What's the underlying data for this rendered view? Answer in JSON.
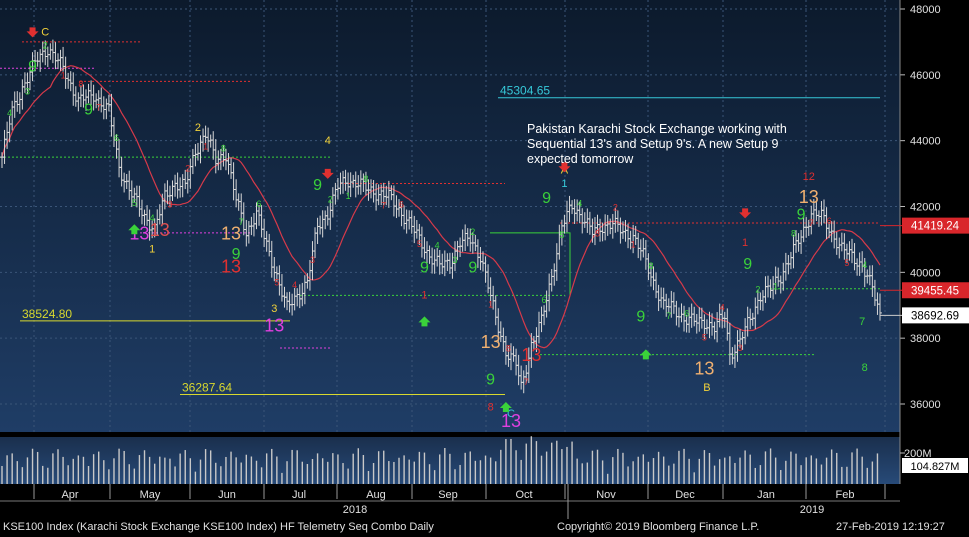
{
  "chart_data": {
    "type": "line",
    "subtype": "ohlc-bar-with-td-sequential-counts",
    "y_range": [
      35200,
      48300
    ],
    "y_ticks": [
      "48000",
      "46000",
      "44000",
      "42000",
      "40000",
      "38000",
      "36000"
    ],
    "volume_ticks": [
      "200M"
    ],
    "x_month_labels": [
      "Apr",
      "May",
      "Jun",
      "Jul",
      "Aug",
      "Sep",
      "Oct",
      "Nov",
      "Dec",
      "Jan",
      "Feb"
    ],
    "year_labels": [
      "2018",
      "2019"
    ],
    "price_anchors": [
      [
        0,
        43500
      ],
      [
        4,
        44900
      ],
      [
        8,
        45600
      ],
      [
        14,
        46500
      ],
      [
        18,
        46800
      ],
      [
        24,
        46200
      ],
      [
        30,
        45200
      ],
      [
        36,
        45400
      ],
      [
        42,
        44900
      ],
      [
        46,
        43200
      ],
      [
        50,
        42500
      ],
      [
        56,
        41700
      ],
      [
        60,
        41300
      ],
      [
        64,
        42300
      ],
      [
        68,
        42700
      ],
      [
        72,
        42600
      ],
      [
        76,
        43700
      ],
      [
        80,
        44200
      ],
      [
        84,
        43400
      ],
      [
        88,
        43600
      ],
      [
        92,
        42200
      ],
      [
        96,
        41200
      ],
      [
        100,
        41800
      ],
      [
        104,
        40800
      ],
      [
        108,
        39900
      ],
      [
        112,
        38900
      ],
      [
        116,
        39300
      ],
      [
        120,
        39700
      ],
      [
        124,
        41400
      ],
      [
        128,
        41800
      ],
      [
        132,
        42600
      ],
      [
        136,
        42800
      ],
      [
        140,
        42700
      ],
      [
        144,
        42500
      ],
      [
        148,
        42400
      ],
      [
        152,
        42300
      ],
      [
        156,
        41900
      ],
      [
        160,
        41500
      ],
      [
        164,
        41000
      ],
      [
        168,
        40500
      ],
      [
        172,
        40200
      ],
      [
        176,
        40300
      ],
      [
        180,
        40900
      ],
      [
        184,
        41000
      ],
      [
        188,
        40500
      ],
      [
        190,
        39900
      ],
      [
        194,
        38600
      ],
      [
        198,
        37600
      ],
      [
        202,
        37200
      ],
      [
        204,
        36500
      ],
      [
        208,
        37800
      ],
      [
        212,
        38500
      ],
      [
        216,
        39900
      ],
      [
        220,
        41400
      ],
      [
        224,
        42000
      ],
      [
        228,
        41700
      ],
      [
        232,
        41200
      ],
      [
        236,
        41400
      ],
      [
        240,
        41500
      ],
      [
        244,
        41200
      ],
      [
        248,
        41100
      ],
      [
        252,
        40500
      ],
      [
        256,
        39700
      ],
      [
        260,
        39000
      ],
      [
        264,
        38900
      ],
      [
        268,
        38600
      ],
      [
        272,
        38500
      ],
      [
        276,
        38500
      ],
      [
        280,
        38300
      ],
      [
        284,
        38700
      ],
      [
        286,
        37500
      ],
      [
        290,
        37900
      ],
      [
        294,
        38600
      ],
      [
        298,
        39300
      ],
      [
        302,
        39500
      ],
      [
        306,
        39900
      ],
      [
        310,
        40500
      ],
      [
        314,
        41100
      ],
      [
        318,
        41800
      ],
      [
        322,
        41700
      ],
      [
        326,
        41200
      ],
      [
        330,
        40700
      ],
      [
        334,
        40500
      ],
      [
        338,
        40200
      ],
      [
        342,
        39500
      ],
      [
        345,
        38700
      ]
    ],
    "series": [
      {
        "name": "",
        "color": "#d8d8d8",
        "kind": "ohlc"
      },
      {
        "name": "",
        "color": "#d63a4a",
        "kind": "moving-average"
      }
    ],
    "current_values": [
      {
        "label": "41419.24",
        "value": 41419.24,
        "bg": "#d9262b"
      },
      {
        "label": "39455.45",
        "value": 39455.45,
        "bg": "#d9262b"
      },
      {
        "label": "38692.69",
        "value": 38692.69,
        "bg": "#ffffff"
      }
    ],
    "current_volume": {
      "label": "104.827M",
      "bg": "#ffffff"
    },
    "level_lines": [
      {
        "label": "45304.65",
        "value": 45304.65,
        "color": "#36c8d8"
      },
      {
        "label": "38524.80",
        "value": 38524.8,
        "color": "#d8d82e"
      },
      {
        "label": "36287.64",
        "value": 36287.64,
        "color": "#d8d82e"
      }
    ],
    "annotation": [
      "Pakistan Karachi Stock Exchange working with",
      "Sequential 13's and Setup 9's.  A new Setup 9",
      "expected tomorrow"
    ],
    "markers": [
      {
        "t": "C",
        "d": 17,
        "p": 47200,
        "c": "#f2d23a"
      },
      {
        "t": "9",
        "d": 12,
        "p": 46100,
        "c": "#3ad23a"
      },
      {
        "t": "9",
        "d": 34,
        "p": 44800,
        "c": "#3ad23a"
      },
      {
        "t": "2",
        "d": 77,
        "p": 44300,
        "c": "#f2d23a"
      },
      {
        "t": "13",
        "d": 54,
        "p": 41000,
        "c": "#e040e0"
      },
      {
        "t": "13",
        "d": 62,
        "p": 41100,
        "c": "#e05050"
      },
      {
        "t": "1",
        "d": 59,
        "p": 40600,
        "c": "#f2d23a"
      },
      {
        "t": "13",
        "d": 90,
        "p": 41000,
        "c": "#f0b070"
      },
      {
        "t": "9",
        "d": 92,
        "p": 40400,
        "c": "#3ad23a"
      },
      {
        "t": "13",
        "d": 90,
        "p": 40000,
        "c": "#e03030"
      },
      {
        "t": "13",
        "d": 107,
        "p": 38200,
        "c": "#e040e0"
      },
      {
        "t": "3",
        "d": 107,
        "p": 38800,
        "c": "#f2d23a"
      },
      {
        "t": "4",
        "d": 128,
        "p": 43900,
        "c": "#f2d23a"
      },
      {
        "t": "9",
        "d": 124,
        "p": 42500,
        "c": "#3ad23a"
      },
      {
        "t": "9",
        "d": 166,
        "p": 40000,
        "c": "#3ad23a"
      },
      {
        "t": "1",
        "d": 166,
        "p": 39200,
        "c": "#e03030"
      },
      {
        "t": "9",
        "d": 185,
        "p": 40000,
        "c": "#3ad23a"
      },
      {
        "t": "13",
        "d": 192,
        "p": 37700,
        "c": "#f0b070"
      },
      {
        "t": "13",
        "d": 208,
        "p": 37300,
        "c": "#e03030"
      },
      {
        "t": "9",
        "d": 192,
        "p": 36600,
        "c": "#3ad23a"
      },
      {
        "t": "8",
        "d": 192,
        "p": 35800,
        "c": "#e03030"
      },
      {
        "t": "C",
        "d": 200,
        "p": 35600,
        "c": "#36c8d8"
      },
      {
        "t": "13",
        "d": 200,
        "p": 35300,
        "c": "#e040e0"
      },
      {
        "t": "A",
        "d": 221,
        "p": 43000,
        "c": "#f2d23a"
      },
      {
        "t": "1",
        "d": 221,
        "p": 42600,
        "c": "#36c8d8"
      },
      {
        "t": "9",
        "d": 214,
        "p": 42100,
        "c": "#3ad23a"
      },
      {
        "t": "9",
        "d": 251,
        "p": 38500,
        "c": "#3ad23a"
      },
      {
        "t": "13",
        "d": 276,
        "p": 36900,
        "c": "#f0b070"
      },
      {
        "t": "B",
        "d": 277,
        "p": 36400,
        "c": "#f2d23a"
      },
      {
        "t": "9",
        "d": 293,
        "p": 40100,
        "c": "#3ad23a"
      },
      {
        "t": "1",
        "d": 292,
        "p": 40800,
        "c": "#e03030"
      },
      {
        "t": "12",
        "d": 317,
        "p": 42800,
        "c": "#e03030"
      },
      {
        "t": "13",
        "d": 317,
        "p": 42100,
        "c": "#f0b070"
      },
      {
        "t": "9",
        "d": 314,
        "p": 41600,
        "c": "#3ad23a"
      },
      {
        "t": "7",
        "d": 338,
        "p": 38400,
        "c": "#3ad23a"
      },
      {
        "t": "8",
        "d": 339,
        "p": 37000,
        "c": "#3ad23a"
      }
    ]
  },
  "footer": {
    "left": "KSE100 Index (Karachi Stock Exchange KSE100 Index) HF Telemetry Seq Combo  Daily",
    "center": "Copyright© 2019 Bloomberg Finance L.P.",
    "right": "27-Feb-2019 12:19:27"
  }
}
